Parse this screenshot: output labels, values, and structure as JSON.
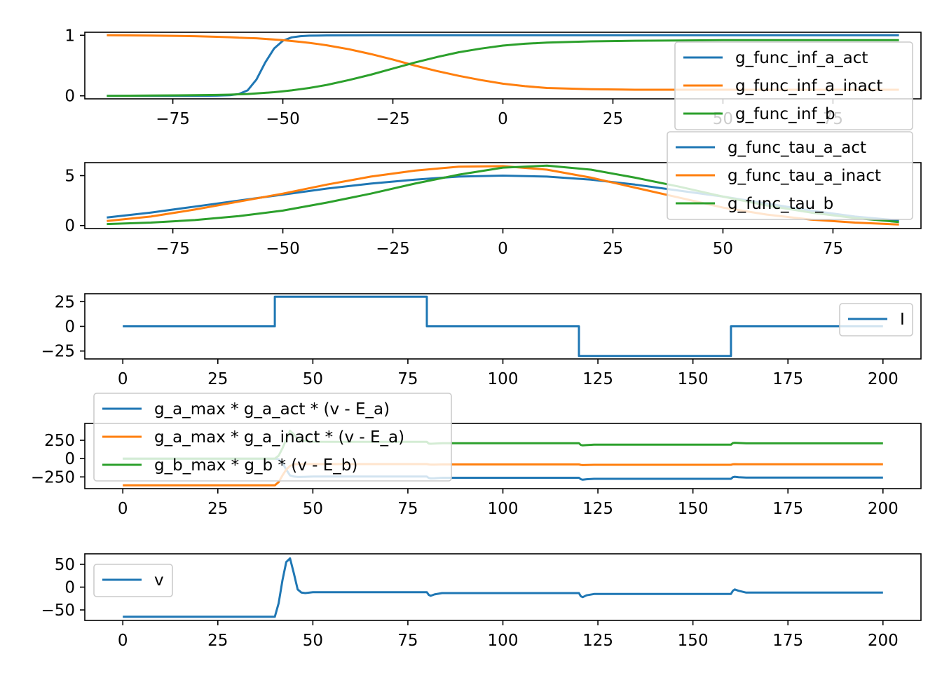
{
  "colors": {
    "c0": "#1f77b4",
    "c1": "#ff7f0e",
    "c2": "#2ca02c"
  },
  "chart_data": [
    {
      "type": "line",
      "x": [
        -90,
        -80,
        -70,
        -65,
        -62,
        -60,
        -58,
        -56,
        -54,
        -52,
        -50,
        -48,
        -46,
        -44,
        -42,
        -40,
        -35,
        -30,
        -25,
        -20,
        -15,
        -10,
        -5,
        0,
        5,
        10,
        20,
        30,
        40,
        50,
        60,
        70,
        80,
        90
      ],
      "xlim": [
        -95.0,
        95.0
      ],
      "ylim": [
        -0.05,
        1.05
      ],
      "xticks": [
        -75,
        -50,
        -25,
        0,
        25,
        50,
        75
      ],
      "xtick_labels": [
        "−75",
        "−50",
        "−25",
        "0",
        "25",
        "50",
        "75"
      ],
      "yticks": [
        0,
        1
      ],
      "ytick_labels": [
        "0",
        "1"
      ],
      "grid": false,
      "legend": "top-right",
      "series": [
        {
          "name": "g_func_inf_a_act",
          "color": "#1f77b4",
          "values": [
            0,
            0,
            0,
            0.003,
            0.01,
            0.03,
            0.09,
            0.27,
            0.55,
            0.78,
            0.91,
            0.965,
            0.985,
            0.993,
            0.996,
            0.998,
            0.999,
            1,
            1,
            1,
            1,
            1,
            1,
            1,
            1,
            1,
            1,
            1,
            1,
            1,
            1,
            1,
            1,
            1
          ]
        },
        {
          "name": "g_func_inf_a_inact",
          "color": "#ff7f0e",
          "values": [
            1.0,
            0.995,
            0.985,
            0.975,
            0.968,
            0.96,
            0.955,
            0.95,
            0.94,
            0.93,
            0.92,
            0.905,
            0.89,
            0.875,
            0.855,
            0.835,
            0.77,
            0.69,
            0.6,
            0.5,
            0.41,
            0.33,
            0.26,
            0.2,
            0.16,
            0.13,
            0.11,
            0.1,
            0.1,
            0.1,
            0.1,
            0.1,
            0.1,
            0.1
          ]
        },
        {
          "name": "g_func_inf_b",
          "color": "#2ca02c",
          "values": [
            0.0,
            0.005,
            0.01,
            0.015,
            0.02,
            0.025,
            0.03,
            0.04,
            0.05,
            0.06,
            0.075,
            0.09,
            0.11,
            0.13,
            0.155,
            0.18,
            0.26,
            0.35,
            0.45,
            0.55,
            0.64,
            0.72,
            0.78,
            0.83,
            0.86,
            0.88,
            0.9,
            0.91,
            0.915,
            0.92,
            0.92,
            0.92,
            0.92,
            0.92
          ]
        }
      ]
    },
    {
      "type": "line",
      "x": [
        -90,
        -80,
        -70,
        -60,
        -50,
        -40,
        -30,
        -20,
        -10,
        0,
        10,
        20,
        30,
        40,
        50,
        60,
        70,
        80,
        90
      ],
      "xlim": [
        -95.0,
        95.0
      ],
      "ylim": [
        -0.3,
        6.3
      ],
      "xticks": [
        -75,
        -50,
        -25,
        0,
        25,
        50,
        75
      ],
      "xtick_labels": [
        "−75",
        "−50",
        "−25",
        "0",
        "25",
        "50",
        "75"
      ],
      "yticks": [
        0,
        5
      ],
      "ytick_labels": [
        "0",
        "5"
      ],
      "grid": false,
      "legend": "top-right",
      "series": [
        {
          "name": "g_func_tau_a_act",
          "color": "#1f77b4",
          "values": [
            0.8,
            1.3,
            1.9,
            2.5,
            3.1,
            3.7,
            4.2,
            4.6,
            4.9,
            5.0,
            4.9,
            4.6,
            4.1,
            3.5,
            2.9,
            2.2,
            1.5,
            0.9,
            0.5
          ]
        },
        {
          "name": "g_func_tau_a_inact",
          "color": "#ff7f0e",
          "values": [
            0.45,
            0.9,
            1.6,
            2.4,
            3.2,
            4.1,
            4.9,
            5.5,
            5.9,
            5.95,
            5.6,
            4.8,
            3.8,
            2.8,
            1.8,
            1.1,
            0.6,
            0.3,
            0.1
          ]
        },
        {
          "name": "g_func_tau_b",
          "color": "#2ca02c",
          "values": [
            0.15,
            0.3,
            0.55,
            0.95,
            1.5,
            2.3,
            3.2,
            4.2,
            5.1,
            5.8,
            6.0,
            5.6,
            4.8,
            3.9,
            2.9,
            2.0,
            1.3,
            0.75,
            0.35
          ]
        }
      ]
    },
    {
      "type": "line",
      "x": [
        0,
        40,
        40,
        80,
        80,
        120,
        120,
        160,
        160,
        200
      ],
      "xlim": [
        -10.0,
        210.0
      ],
      "ylim": [
        -33.0,
        33.0
      ],
      "xticks": [
        0,
        25,
        50,
        75,
        100,
        125,
        150,
        175,
        200
      ],
      "xtick_labels": [
        "0",
        "25",
        "50",
        "75",
        "100",
        "125",
        "150",
        "175",
        "200"
      ],
      "yticks": [
        -25,
        0,
        25
      ],
      "ytick_labels": [
        "−25",
        "0",
        "25"
      ],
      "grid": false,
      "legend": "right",
      "series": [
        {
          "name": "I",
          "color": "#1f77b4",
          "values": [
            0,
            0,
            30,
            30,
            0,
            0,
            -30,
            -30,
            0,
            0
          ]
        }
      ]
    },
    {
      "type": "line",
      "x": [
        0,
        40,
        41,
        42,
        43,
        44,
        45,
        46,
        47,
        48,
        50,
        55,
        60,
        70,
        80,
        80.5,
        81,
        82,
        84,
        90,
        100,
        110,
        120,
        120.5,
        121,
        122,
        124,
        130,
        140,
        150,
        160,
        160.5,
        161,
        162,
        164,
        170,
        180,
        190,
        200
      ],
      "xlim": [
        -10.0,
        210.0
      ],
      "ylim": [
        -410.0,
        480.0
      ],
      "xticks": [
        0,
        25,
        50,
        75,
        100,
        125,
        150,
        175,
        200
      ],
      "xtick_labels": [
        "0",
        "25",
        "50",
        "75",
        "100",
        "125",
        "150",
        "175",
        "200"
      ],
      "yticks": [
        -250,
        0,
        250
      ],
      "ytick_labels": [
        "−250",
        "0",
        "250"
      ],
      "grid": false,
      "legend": "upper left",
      "series": [
        {
          "name": "g_a_max * g_a_act * (v - E_a)",
          "color": "#1f77b4",
          "values": [
            0,
            0,
            -10,
            -60,
            -150,
            -230,
            -245,
            -250,
            -250,
            -248,
            -245,
            -245,
            -245,
            -245,
            -245,
            -265,
            -270,
            -268,
            -262,
            -262,
            -262,
            -262,
            -262,
            -282,
            -288,
            -282,
            -276,
            -276,
            -276,
            -276,
            -276,
            -254,
            -248,
            -254,
            -260,
            -260,
            -260,
            -260,
            -260
          ]
        },
        {
          "name": "g_a_max * g_a_inact * (v - E_a)",
          "color": "#ff7f0e",
          "values": [
            -365,
            -365,
            -320,
            -230,
            -150,
            -100,
            -80,
            -75,
            -75,
            -75,
            -75,
            -75,
            -75,
            -75,
            -75,
            -80,
            -82,
            -82,
            -80,
            -80,
            -80,
            -80,
            -80,
            -86,
            -88,
            -87,
            -85,
            -85,
            -85,
            -85,
            -85,
            -78,
            -76,
            -77,
            -78,
            -78,
            -78,
            -78,
            -78
          ]
        },
        {
          "name": "g_b_max * g_b * (v - E_b)",
          "color": "#2ca02c",
          "values": [
            0,
            0,
            40,
            140,
            260,
            380,
            330,
            270,
            245,
            238,
            230,
            228,
            228,
            228,
            228,
            205,
            202,
            205,
            210,
            210,
            210,
            210,
            210,
            186,
            180,
            184,
            190,
            190,
            190,
            190,
            190,
            212,
            216,
            213,
            208,
            208,
            208,
            208,
            208
          ]
        }
      ]
    },
    {
      "type": "line",
      "x": [
        0,
        40,
        41,
        42,
        43,
        44,
        45,
        46,
        47,
        48,
        50,
        55,
        60,
        70,
        80,
        80.5,
        81,
        82,
        84,
        90,
        100,
        110,
        120,
        120.5,
        121,
        122,
        124,
        130,
        140,
        150,
        160,
        160.5,
        161,
        162,
        164,
        170,
        180,
        190,
        200
      ],
      "xlim": [
        -10.0,
        210.0
      ],
      "ylim": [
        -73.0,
        73.0
      ],
      "xticks": [
        0,
        25,
        50,
        75,
        100,
        125,
        150,
        175,
        200
      ],
      "xtick_labels": [
        "0",
        "25",
        "50",
        "75",
        "100",
        "125",
        "150",
        "175",
        "200"
      ],
      "yticks": [
        -50,
        0,
        50
      ],
      "ytick_labels": [
        "−50",
        "0",
        "50"
      ],
      "grid": false,
      "legend": "upper left",
      "series": [
        {
          "name": "v",
          "color": "#1f77b4",
          "values": [
            -65,
            -65,
            -35,
            15,
            55,
            63,
            30,
            -5,
            -12,
            -13,
            -11,
            -11,
            -11,
            -11,
            -11,
            -17,
            -19,
            -16,
            -13,
            -13,
            -13,
            -13,
            -13,
            -20,
            -22,
            -18,
            -15,
            -15,
            -15,
            -15,
            -15,
            -8,
            -5,
            -8,
            -12,
            -12,
            -12,
            -12,
            -12
          ]
        }
      ]
    }
  ]
}
